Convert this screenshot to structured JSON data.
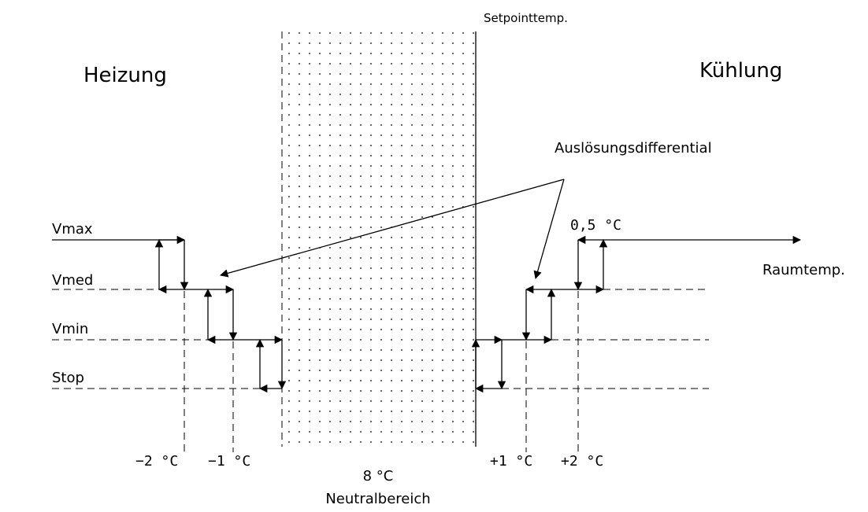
{
  "labels": {
    "setpoint": "Setpointtemp.",
    "heating": "Heizung",
    "cooling": "Kühlung",
    "trigger_differential": "Auslösungsdifferential",
    "room_temp": "Raumtemp.",
    "hysteresis": "0,5 °C",
    "neutral_value": "8 °C",
    "neutral_zone": "Neutralbereich"
  },
  "levels": {
    "vmax": "Vmax",
    "vmed": "Vmed",
    "vmin": "Vmin",
    "stop": "Stop"
  },
  "ticks": {
    "minus2": "−2 °C",
    "minus1": "−1 °C",
    "plus1": "+1 °C",
    "plus2": "+2 °C"
  }
}
